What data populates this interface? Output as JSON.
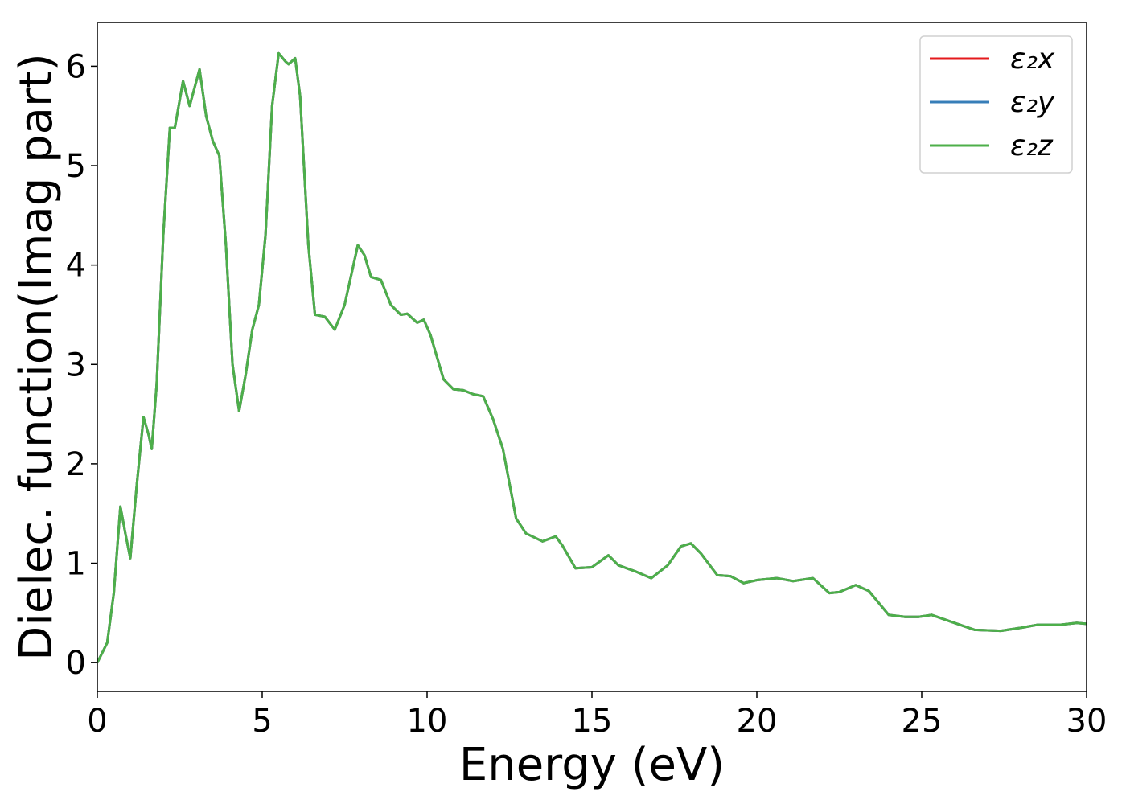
{
  "chart_data": {
    "type": "line",
    "xlabel": "Energy (eV)",
    "ylabel": "Dielec. function(Imag part)",
    "x": [
      0,
      0.3,
      0.5,
      0.7,
      0.85,
      1.0,
      1.2,
      1.4,
      1.55,
      1.65,
      1.8,
      2.0,
      2.2,
      2.35,
      2.6,
      2.8,
      3.1,
      3.3,
      3.5,
      3.7,
      3.9,
      4.1,
      4.3,
      4.5,
      4.7,
      4.9,
      5.1,
      5.3,
      5.5,
      5.7,
      5.8,
      6.0,
      6.15,
      6.4,
      6.6,
      6.9,
      7.2,
      7.5,
      7.9,
      8.1,
      8.3,
      8.6,
      8.9,
      9.2,
      9.4,
      9.7,
      9.9,
      10.1,
      10.5,
      10.8,
      11.1,
      11.4,
      11.7,
      12.0,
      12.3,
      12.7,
      13.0,
      13.5,
      13.9,
      14.1,
      14.5,
      15.0,
      15.5,
      15.8,
      16.3,
      16.8,
      17.3,
      17.7,
      18.0,
      18.3,
      18.8,
      19.2,
      19.6,
      20.0,
      20.6,
      21.1,
      21.7,
      22.2,
      22.5,
      23.0,
      23.4,
      24.0,
      24.5,
      24.9,
      25.3,
      25.9,
      26.6,
      27.4,
      28.0,
      28.5,
      29.2,
      29.7,
      30.0
    ],
    "series": [
      {
        "name": "ε₂x",
        "color": "#e41a1c",
        "values": [
          0,
          0.2,
          0.7,
          1.57,
          1.3,
          1.05,
          1.8,
          2.47,
          2.3,
          2.15,
          2.8,
          4.3,
          5.38,
          5.38,
          5.85,
          5.6,
          5.97,
          5.5,
          5.25,
          5.1,
          4.2,
          3.0,
          2.53,
          2.9,
          3.35,
          3.6,
          4.3,
          5.6,
          6.13,
          6.05,
          6.02,
          6.08,
          5.7,
          4.2,
          3.5,
          3.48,
          3.35,
          3.6,
          4.2,
          4.1,
          3.88,
          3.85,
          3.6,
          3.5,
          3.51,
          3.42,
          3.45,
          3.3,
          2.85,
          2.75,
          2.74,
          2.7,
          2.68,
          2.45,
          2.15,
          1.45,
          1.3,
          1.22,
          1.27,
          1.18,
          0.95,
          0.96,
          1.08,
          0.98,
          0.92,
          0.85,
          0.98,
          1.17,
          1.2,
          1.1,
          0.88,
          0.87,
          0.8,
          0.83,
          0.85,
          0.82,
          0.85,
          0.7,
          0.71,
          0.78,
          0.72,
          0.48,
          0.46,
          0.46,
          0.48,
          0.41,
          0.33,
          0.32,
          0.35,
          0.38,
          0.38,
          0.4,
          0.39
        ]
      },
      {
        "name": "ε₂y",
        "color": "#377eb8",
        "values": [
          0,
          0.2,
          0.7,
          1.57,
          1.3,
          1.05,
          1.8,
          2.47,
          2.3,
          2.15,
          2.8,
          4.3,
          5.38,
          5.38,
          5.85,
          5.6,
          5.97,
          5.5,
          5.25,
          5.1,
          4.2,
          3.0,
          2.53,
          2.9,
          3.35,
          3.6,
          4.3,
          5.6,
          6.13,
          6.05,
          6.02,
          6.08,
          5.7,
          4.2,
          3.5,
          3.48,
          3.35,
          3.6,
          4.2,
          4.1,
          3.88,
          3.85,
          3.6,
          3.5,
          3.51,
          3.42,
          3.45,
          3.3,
          2.85,
          2.75,
          2.74,
          2.7,
          2.68,
          2.45,
          2.15,
          1.45,
          1.3,
          1.22,
          1.27,
          1.18,
          0.95,
          0.96,
          1.08,
          0.98,
          0.92,
          0.85,
          0.98,
          1.17,
          1.2,
          1.1,
          0.88,
          0.87,
          0.8,
          0.83,
          0.85,
          0.82,
          0.85,
          0.7,
          0.71,
          0.78,
          0.72,
          0.48,
          0.46,
          0.46,
          0.48,
          0.41,
          0.33,
          0.32,
          0.35,
          0.38,
          0.38,
          0.4,
          0.39
        ]
      },
      {
        "name": "ε₂z",
        "color": "#4daf4a",
        "values": [
          0,
          0.2,
          0.7,
          1.57,
          1.3,
          1.05,
          1.8,
          2.47,
          2.3,
          2.15,
          2.8,
          4.3,
          5.38,
          5.38,
          5.85,
          5.6,
          5.97,
          5.5,
          5.25,
          5.1,
          4.2,
          3.0,
          2.53,
          2.9,
          3.35,
          3.6,
          4.3,
          5.6,
          6.13,
          6.05,
          6.02,
          6.08,
          5.7,
          4.2,
          3.5,
          3.48,
          3.35,
          3.6,
          4.2,
          4.1,
          3.88,
          3.85,
          3.6,
          3.5,
          3.51,
          3.42,
          3.45,
          3.3,
          2.85,
          2.75,
          2.74,
          2.7,
          2.68,
          2.45,
          2.15,
          1.45,
          1.3,
          1.22,
          1.27,
          1.18,
          0.95,
          0.96,
          1.08,
          0.98,
          0.92,
          0.85,
          0.98,
          1.17,
          1.2,
          1.1,
          0.88,
          0.87,
          0.8,
          0.83,
          0.85,
          0.82,
          0.85,
          0.7,
          0.71,
          0.78,
          0.72,
          0.48,
          0.46,
          0.46,
          0.48,
          0.41,
          0.33,
          0.32,
          0.35,
          0.38,
          0.38,
          0.4,
          0.39
        ]
      }
    ],
    "xlim": [
      0,
      30
    ],
    "xticks": [
      0,
      5,
      10,
      15,
      20,
      25,
      30
    ],
    "ylim": [
      -0.29,
      6.44
    ],
    "yticks": [
      0,
      1,
      2,
      3,
      4,
      5,
      6
    ],
    "grid": false,
    "legend": "upper right"
  }
}
